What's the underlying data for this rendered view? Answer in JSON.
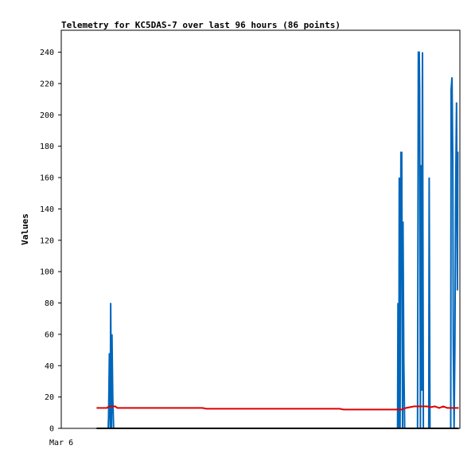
{
  "chart_data": {
    "type": "line",
    "title": "Telemetry for KC5DAS-7 over last 96 hours (86 points)",
    "xlabel": "",
    "ylabel": "Values",
    "x_tick_labels": [
      "Mar 6"
    ],
    "ylim": [
      0,
      254
    ],
    "yticks": [
      0,
      20,
      40,
      60,
      80,
      100,
      120,
      140,
      160,
      180,
      200,
      220,
      240
    ],
    "grid": false,
    "legend": "none",
    "x_unit": "hours since start of window",
    "xlim": [
      0,
      96
    ],
    "series": [
      {
        "color": "#0066bb",
        "points": [
          [
            8.5,
            0
          ],
          [
            11.3,
            0
          ],
          [
            11.4,
            8
          ],
          [
            11.6,
            48
          ],
          [
            11.8,
            0
          ],
          [
            11.9,
            80
          ],
          [
            12.1,
            0
          ],
          [
            12.2,
            60
          ],
          [
            12.4,
            20
          ],
          [
            12.6,
            0
          ],
          [
            81.0,
            0
          ],
          [
            81.1,
            80
          ],
          [
            81.3,
            0
          ],
          [
            81.4,
            160
          ],
          [
            81.6,
            0
          ],
          [
            81.8,
            176
          ],
          [
            82.0,
            176
          ],
          [
            82.2,
            0
          ],
          [
            82.3,
            132
          ],
          [
            82.5,
            44
          ],
          [
            82.7,
            0
          ],
          [
            85.8,
            0
          ],
          [
            85.9,
            120
          ],
          [
            86.0,
            240
          ],
          [
            86.2,
            240
          ],
          [
            86.3,
            216
          ],
          [
            86.5,
            0
          ],
          [
            86.6,
            168
          ],
          [
            86.8,
            24
          ],
          [
            87.0,
            240
          ],
          [
            87.2,
            0
          ],
          [
            88.5,
            0
          ],
          [
            88.6,
            160
          ],
          [
            88.8,
            0
          ],
          [
            93.8,
            0
          ],
          [
            93.9,
            216
          ],
          [
            94.1,
            224
          ],
          [
            94.3,
            168
          ],
          [
            94.4,
            56
          ],
          [
            94.6,
            0
          ],
          [
            94.8,
            52
          ],
          [
            95.0,
            156
          ],
          [
            95.2,
            208
          ],
          [
            95.4,
            88
          ],
          [
            95.5,
            176
          ],
          [
            95.7,
            176
          ]
        ]
      },
      {
        "color": "#dd0000",
        "points": [
          [
            8.5,
            13
          ],
          [
            11.0,
            13
          ],
          [
            11.5,
            14
          ],
          [
            13.0,
            14
          ],
          [
            13.5,
            13
          ],
          [
            34.0,
            13
          ],
          [
            35.0,
            12.5
          ],
          [
            67.0,
            12.5
          ],
          [
            68.0,
            12
          ],
          [
            82.0,
            12
          ],
          [
            83.0,
            13
          ],
          [
            84.0,
            13.5
          ],
          [
            85.0,
            14
          ],
          [
            88.0,
            14
          ],
          [
            89.0,
            13.5
          ],
          [
            90.0,
            14
          ],
          [
            91.0,
            13
          ],
          [
            92.0,
            14
          ],
          [
            93.0,
            13
          ],
          [
            95.7,
            13
          ]
        ]
      },
      {
        "color": "#000000",
        "points": [
          [
            8.5,
            0
          ],
          [
            95.7,
            0
          ]
        ]
      }
    ]
  }
}
